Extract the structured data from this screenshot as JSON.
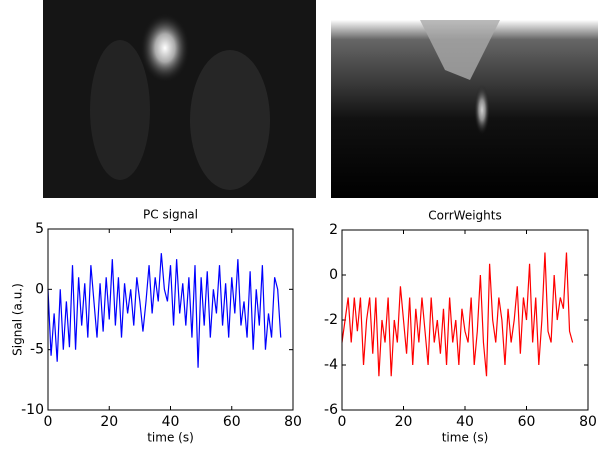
{
  "chart_data": [
    {
      "type": "line",
      "title": "PC signal",
      "x_label": "time (s)",
      "y_label": "Signal (a.u.)",
      "x": [
        0,
        1,
        2,
        3,
        4,
        5,
        6,
        7,
        8,
        9,
        10,
        11,
        12,
        13,
        14,
        15,
        16,
        17,
        18,
        19,
        20,
        21,
        22,
        23,
        24,
        25,
        26,
        27,
        28,
        29,
        30,
        31,
        32,
        33,
        34,
        35,
        36,
        37,
        38,
        39,
        40,
        41,
        42,
        43,
        44,
        45,
        46,
        47,
        48,
        49,
        50,
        51,
        52,
        53,
        54,
        55,
        56,
        57,
        58,
        59,
        60,
        61,
        62,
        63,
        64,
        65,
        66,
        67,
        68,
        69,
        70,
        71,
        72,
        73,
        74,
        75,
        76
      ],
      "series": [
        {
          "color": "#0000ff",
          "values": [
            0,
            -5.5,
            -2,
            -6,
            0,
            -5,
            -1,
            -4.8,
            2,
            -5,
            1,
            -3,
            0.5,
            -4,
            2,
            -1,
            -4,
            0.5,
            -3.5,
            1,
            -2.5,
            2.5,
            -3,
            1,
            -4,
            0.5,
            -2,
            0,
            -3,
            1,
            -1,
            -3.5,
            -1,
            2,
            -2,
            1,
            -1,
            3,
            0,
            -1,
            2,
            -3,
            2.5,
            -2,
            0.5,
            -3,
            1,
            -4,
            2,
            -6.5,
            1,
            -3,
            1.5,
            -4,
            0,
            -2,
            2,
            -3,
            0.5,
            -4,
            1,
            -2,
            2.5,
            -3,
            -1,
            -4,
            1.5,
            -5,
            0,
            -3,
            2,
            -5,
            -2,
            -4,
            1,
            0,
            -4
          ]
        }
      ],
      "xlim": [
        0,
        80
      ],
      "xticks": [
        0,
        20,
        40,
        60,
        80
      ],
      "ylim": [
        -10,
        5
      ],
      "yticks": [
        -10,
        -5,
        0,
        5
      ]
    },
    {
      "type": "line",
      "title": "CorrWeights",
      "x_label": "time (s)",
      "x": [
        0,
        1,
        2,
        3,
        4,
        5,
        6,
        7,
        8,
        9,
        10,
        11,
        12,
        13,
        14,
        15,
        16,
        17,
        18,
        19,
        20,
        21,
        22,
        23,
        24,
        25,
        26,
        27,
        28,
        29,
        30,
        31,
        32,
        33,
        34,
        35,
        36,
        37,
        38,
        39,
        40,
        41,
        42,
        43,
        44,
        45,
        46,
        47,
        48,
        49,
        50,
        51,
        52,
        53,
        54,
        55,
        56,
        57,
        58,
        59,
        60,
        61,
        62,
        63,
        64,
        65,
        66,
        67,
        68,
        69,
        70,
        71,
        72,
        73,
        74,
        75
      ],
      "series": [
        {
          "color": "#ff0000",
          "values": [
            -3,
            -2,
            -1,
            -3,
            -1,
            -2.5,
            -1,
            -4,
            -2,
            -1,
            -3.5,
            -1,
            -4.5,
            -2,
            -3,
            -1,
            -4.5,
            -2,
            -3,
            -0.5,
            -2,
            -3.5,
            -1,
            -4,
            -1.5,
            -3,
            -1,
            -2.5,
            -4,
            -1,
            -3,
            -2,
            -3.5,
            -1.5,
            -4,
            -1,
            -3,
            -2,
            -4,
            -1.5,
            -2.5,
            -3,
            -1,
            -4,
            -2.5,
            0,
            -3,
            -4.5,
            0.5,
            -2,
            -3,
            -1,
            -2,
            -4,
            -1.5,
            -3,
            -2,
            -0.5,
            -3.5,
            -1,
            -2,
            0.5,
            -3,
            -1,
            -4,
            -2,
            1,
            -2.5,
            -3,
            0,
            -2,
            -1,
            -1.5,
            1,
            -2.5,
            -3
          ]
        }
      ],
      "xlim": [
        0,
        80
      ],
      "xticks": [
        0,
        20,
        40,
        60,
        80
      ],
      "ylim": [
        -6,
        2
      ],
      "yticks": [
        -6,
        -4,
        -2,
        0,
        2
      ]
    }
  ]
}
